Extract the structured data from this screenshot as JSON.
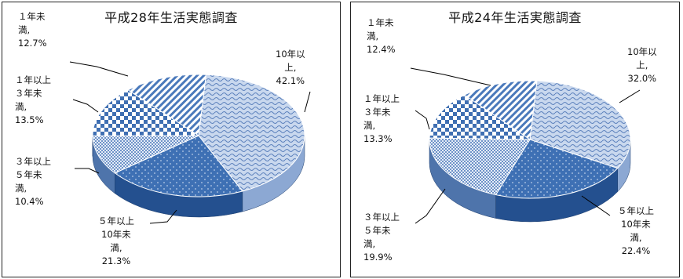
{
  "chart_data": [
    {
      "type": "pie",
      "title": "平成28年生活実態調査",
      "slices": [
        {
          "label_lines": [
            "10年以",
            "上,",
            "42.1%"
          ],
          "value": 42.1,
          "pattern": "wave"
        },
        {
          "label_lines": [
            "５年以上",
            "10年未",
            "満,",
            "21.3%"
          ],
          "value": 21.3,
          "pattern": "dots"
        },
        {
          "label_lines": [
            "３年以上",
            "５年未",
            "満,",
            "10.4%"
          ],
          "value": 10.4,
          "pattern": "fine"
        },
        {
          "label_lines": [
            "１年以上",
            "３年未",
            "満,",
            "13.5%"
          ],
          "value": 13.5,
          "pattern": "checker"
        },
        {
          "label_lines": [
            "１年未",
            "満,",
            "12.7%"
          ],
          "value": 12.7,
          "pattern": "diagonal"
        }
      ]
    },
    {
      "type": "pie",
      "title": "平成24年生活実態調査",
      "slices": [
        {
          "label_lines": [
            "10年以",
            "上,",
            "32.0%"
          ],
          "value": 32.0,
          "pattern": "wave"
        },
        {
          "label_lines": [
            "５年以上",
            "10年未",
            "満,",
            "22.4%"
          ],
          "value": 22.4,
          "pattern": "dots"
        },
        {
          "label_lines": [
            "３年以上",
            "５年未",
            "満,",
            "19.9%"
          ],
          "value": 19.9,
          "pattern": "fine"
        },
        {
          "label_lines": [
            "１年以上",
            "３年未",
            "満,",
            "13.3%"
          ],
          "value": 13.3,
          "pattern": "checker"
        },
        {
          "label_lines": [
            "１年未",
            "満,",
            "12.4%"
          ],
          "value": 12.4,
          "pattern": "diagonal"
        }
      ]
    }
  ]
}
